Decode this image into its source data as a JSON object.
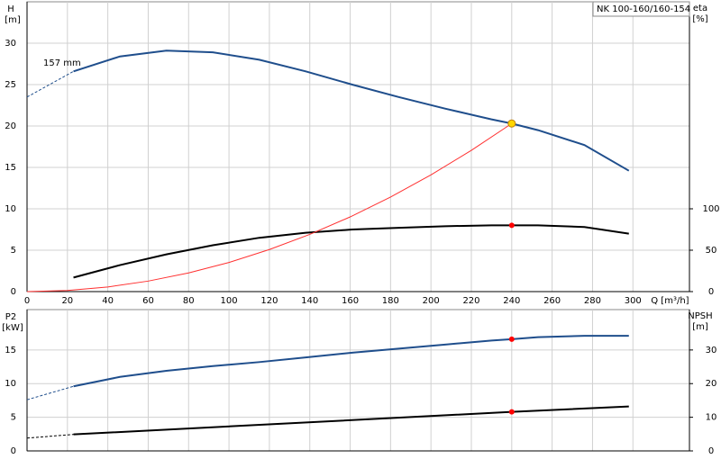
{
  "chart_data": [
    {
      "type": "line",
      "note": "NK 100-160/160-154",
      "ylabel": "H",
      "yunit": "[m]",
      "y2label": "eta",
      "y2unit": "[%]",
      "xlabel": "Q [m³/h]",
      "xlim": [
        0,
        328
      ],
      "xticks": [
        0,
        20,
        40,
        60,
        80,
        100,
        120,
        140,
        160,
        180,
        200,
        220,
        240,
        260,
        280,
        300
      ],
      "ylim": [
        0,
        35
      ],
      "yticks": [
        0,
        5,
        10,
        15,
        20,
        25,
        30
      ],
      "y2lim": [
        0,
        350
      ],
      "y2ticks": [
        0,
        50,
        100
      ],
      "grid": true,
      "annotation": "157 mm",
      "series": [
        {
          "color": "#1f4e8c",
          "width": 2,
          "x": [
            23,
            46,
            69,
            92,
            115,
            138,
            161,
            184,
            207,
            230,
            240,
            253,
            276,
            298
          ],
          "values": [
            26.6,
            28.4,
            29.1,
            28.9,
            28,
            26.6,
            25,
            23.5,
            22.1,
            20.8,
            20.3,
            19.5,
            17.7,
            14.6
          ]
        },
        {
          "color": "#1f4e8c",
          "width": 1,
          "dash": true,
          "x": [
            0,
            23
          ],
          "values": [
            23.5,
            26.6
          ]
        },
        {
          "color": "#000000",
          "width": 2,
          "axis": "y2",
          "x": [
            23,
            46,
            69,
            92,
            115,
            138,
            161,
            184,
            207,
            230,
            240,
            253,
            276,
            298
          ],
          "values": [
            17,
            32,
            45,
            56,
            65,
            71,
            75,
            77,
            79,
            80,
            80,
            80,
            78,
            70
          ]
        },
        {
          "color": "#ff3030",
          "width": 1,
          "x": [
            0,
            20,
            40,
            60,
            80,
            100,
            120,
            140,
            160,
            180,
            200,
            220,
            240
          ],
          "values": [
            0,
            0.14,
            0.56,
            1.27,
            2.26,
            3.52,
            5.08,
            6.91,
            9.02,
            11.42,
            14.1,
            17.06,
            20.3
          ]
        }
      ],
      "markers": [
        {
          "x": 240,
          "y": 20.3,
          "color": "#ffd700"
        },
        {
          "x": 240,
          "y": 80,
          "axis": "y2",
          "color": "#ff0000"
        }
      ]
    },
    {
      "type": "line",
      "ylabel": "P2",
      "yunit": "[kW]",
      "y2label": "NPSH",
      "y2unit": "[m]",
      "xlim": [
        0,
        328
      ],
      "ylim": [
        0,
        21
      ],
      "yticks": [
        0,
        5,
        10,
        15
      ],
      "y2lim": [
        0,
        42
      ],
      "y2ticks": [
        0,
        10,
        20,
        30
      ],
      "grid": true,
      "series": [
        {
          "color": "#1f4e8c",
          "width": 2,
          "x": [
            23,
            46,
            69,
            92,
            115,
            138,
            161,
            184,
            207,
            230,
            240,
            253,
            276,
            298
          ],
          "values": [
            9.6,
            11,
            11.9,
            12.6,
            13.2,
            13.9,
            14.6,
            15.2,
            15.8,
            16.4,
            16.6,
            16.9,
            17.1,
            17.1
          ]
        },
        {
          "color": "#1f4e8c",
          "width": 1,
          "dash": true,
          "x": [
            0,
            23
          ],
          "values": [
            7.6,
            9.6
          ]
        },
        {
          "color": "#000000",
          "width": 2,
          "axis": "y2",
          "x": [
            23,
            240,
            298
          ],
          "values": [
            4.9,
            11.6,
            13.2
          ]
        },
        {
          "color": "#000000",
          "width": 1,
          "axis": "y2",
          "dash": true,
          "x": [
            0,
            23
          ],
          "values": [
            3.8,
            4.9
          ]
        }
      ],
      "markers": [
        {
          "x": 240,
          "y": 16.6,
          "color": "#ff0000"
        },
        {
          "x": 240,
          "y": 11.6,
          "axis": "y2",
          "color": "#ff0000"
        }
      ]
    }
  ]
}
